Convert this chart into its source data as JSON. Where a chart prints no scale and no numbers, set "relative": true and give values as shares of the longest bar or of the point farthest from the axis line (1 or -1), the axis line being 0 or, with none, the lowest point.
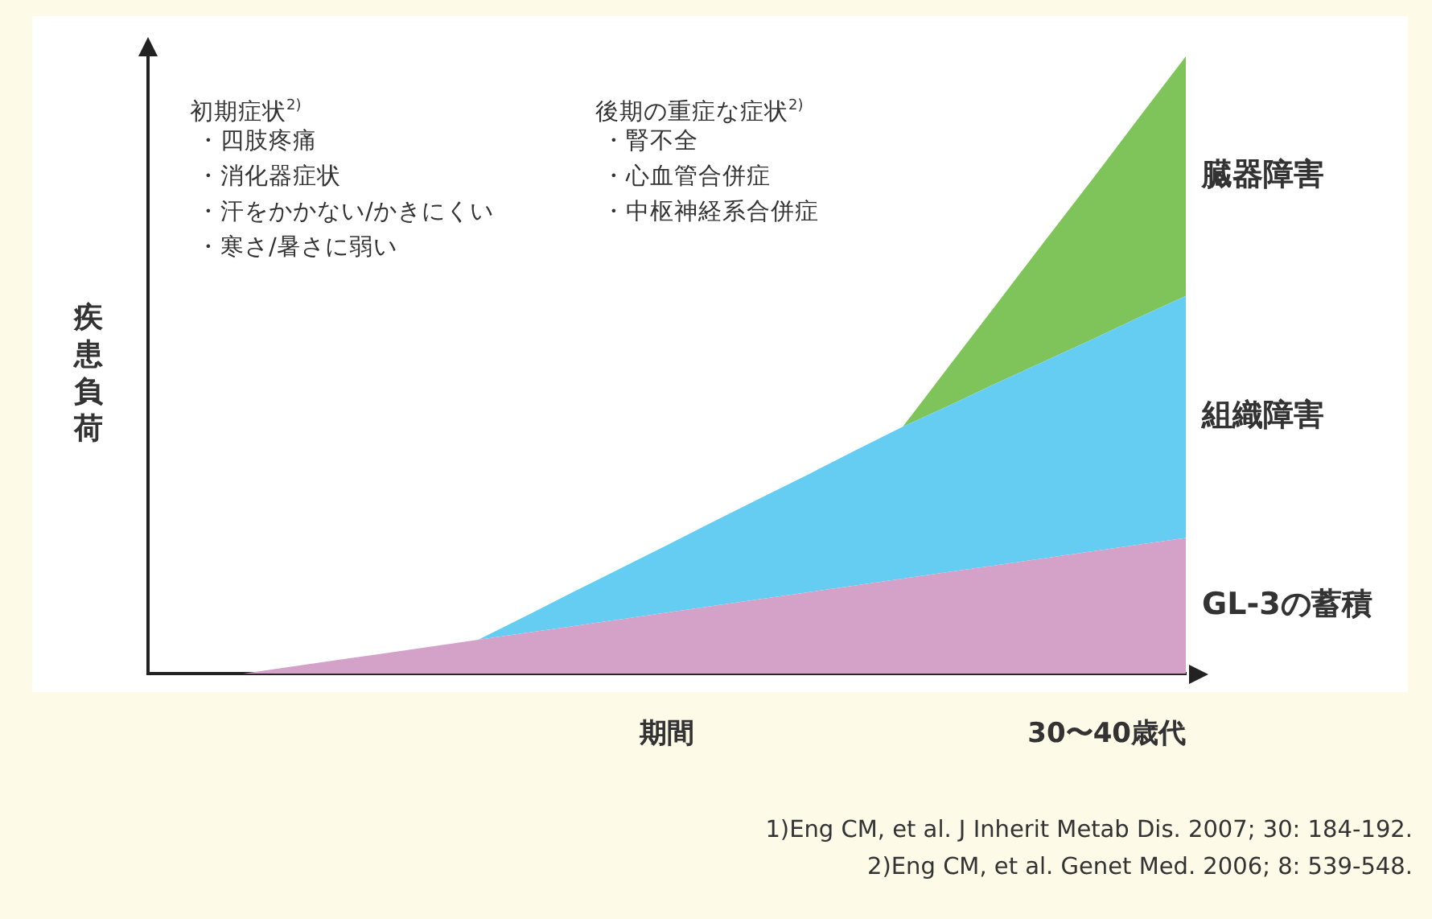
{
  "chart_data": {
    "type": "area",
    "stacked": true,
    "relative": true,
    "legend": false,
    "grid": false,
    "marker": "none",
    "xlabel": "期間",
    "ylabel": "疾患負荷",
    "categories": [
      null,
      null,
      null,
      null,
      null,
      null,
      null,
      null,
      null,
      null,
      null,
      null,
      null,
      null,
      null,
      null,
      null,
      null,
      null,
      null,
      null,
      null,
      null
    ],
    "series": [
      {
        "name": "GL-3の蓄積",
        "color": "#d4a2c9",
        "values": [
          0,
          0,
          0,
          0.011,
          0.022,
          0.033,
          0.044,
          0.055,
          0.066,
          0.077,
          0.088,
          0.099,
          0.11,
          0.121,
          0.132,
          0.143,
          0.154,
          0.165,
          0.176,
          0.187,
          0.198,
          0.209,
          0.22
        ]
      },
      {
        "name": "組織障害",
        "color": "#66cdf2",
        "values": [
          0,
          0,
          0,
          0,
          0,
          0,
          0,
          0,
          0.027,
          0.055,
          0.082,
          0.109,
          0.137,
          0.164,
          0.191,
          0.219,
          0.246,
          0.27,
          0.295,
          0.319,
          0.343,
          0.368,
          0.392
        ]
      },
      {
        "name": "臓器障害",
        "color": "#7ec45a",
        "values": [
          0,
          0,
          0,
          0,
          0,
          0,
          0,
          0,
          0,
          0,
          0,
          0,
          0,
          0,
          0,
          0,
          0,
          0.065,
          0.129,
          0.194,
          0.258,
          0.323,
          0.388
        ]
      }
    ],
    "annotations": [
      "初期症状$^{2)}$",
      "・四肢疼痛",
      "・消化器症状",
      "・汗をかかない/かきにくい",
      "・寒さ/暑さに弱い",
      "後期の重症な症状$^{2)}$",
      "・腎不全",
      "・心血管合併症",
      "・中枢神経系合併症",
      "1)Eng CM,  et al. J Inherit Metab Dis. 2007; 30: 184-192.",
      "2)Eng CM,  et al. Genet Med. 2006; 8: 539-548.",
      "30〜40歳代"
    ]
  }
}
